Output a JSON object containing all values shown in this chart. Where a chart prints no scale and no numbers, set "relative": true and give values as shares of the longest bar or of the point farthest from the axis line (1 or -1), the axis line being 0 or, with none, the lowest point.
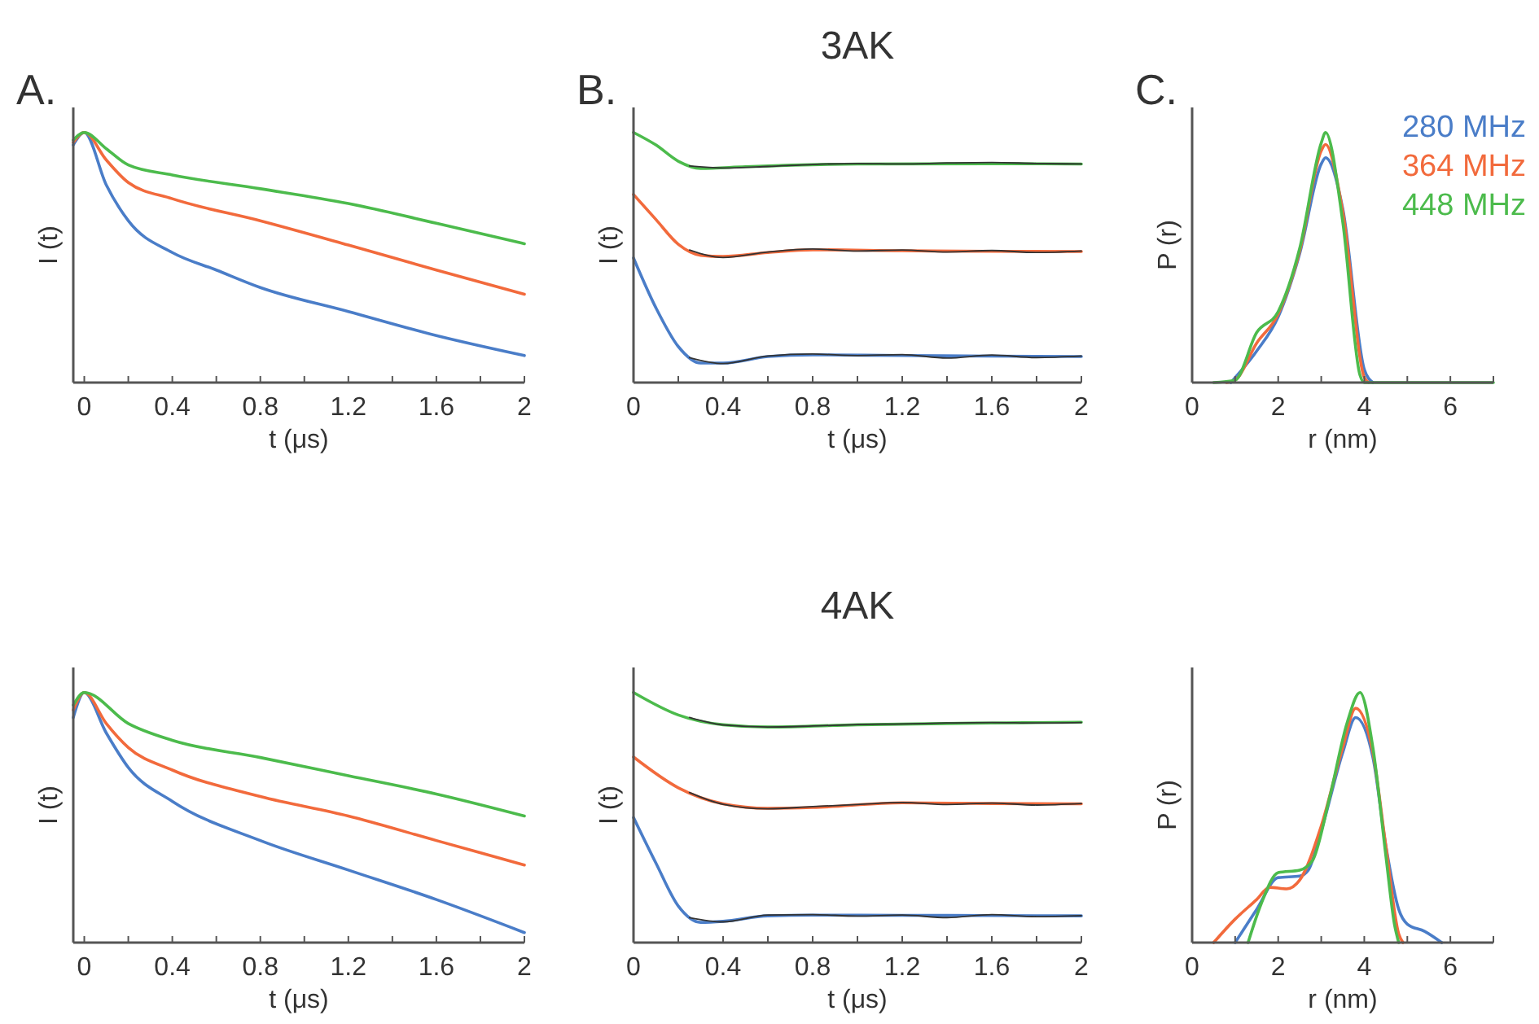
{
  "chart_data": [
    {
      "type": "line",
      "relative": true,
      "xlabel": "t (μs)",
      "ylabel": "I (t)",
      "annotations": [
        "A."
      ],
      "xlim": [
        -0.05,
        2
      ],
      "xticks": [
        0,
        {
          "value": 0.2,
          "label": null
        },
        0.4,
        {
          "value": 0.6,
          "label": null
        },
        0.8,
        {
          "value": 1.0,
          "label": null
        },
        1.2,
        {
          "value": 1.4,
          "label": null
        },
        1.6,
        {
          "value": 1.8,
          "label": null
        },
        2
      ],
      "tick_labels": "x",
      "legend": false,
      "series": [
        {
          "color": "#4a7dc8",
          "x": [
            -0.05,
            0,
            0.1,
            0.2,
            0.4,
            0.6,
            0.8,
            1.2,
            1.6,
            2
          ],
          "values": [
            0.95,
            1.0,
            0.79,
            0.647,
            0.52,
            0.45,
            0.38,
            0.284,
            0.188,
            0.108
          ]
        },
        {
          "color": "#f26a3c",
          "x": [
            -0.05,
            0,
            0.1,
            0.2,
            0.4,
            0.8,
            1.2,
            1.6,
            2
          ],
          "values": [
            0.96,
            1.0,
            0.89,
            0.8,
            0.735,
            0.647,
            0.55,
            0.45,
            0.353
          ]
        },
        {
          "color": "#4cbb4c",
          "x": [
            -0.05,
            0,
            0.1,
            0.2,
            0.4,
            0.8,
            1.2,
            1.6,
            2
          ],
          "values": [
            0.97,
            1.0,
            0.935,
            0.87,
            0.83,
            0.775,
            0.716,
            0.637,
            0.555
          ]
        }
      ]
    },
    {
      "type": "line",
      "relative": true,
      "title": "3AK",
      "xlabel": "t (μs)",
      "ylabel": "I (t)",
      "annotations": [
        "B."
      ],
      "xlim": [
        0,
        2
      ],
      "xticks": [
        0,
        {
          "value": 0.2,
          "label": null
        },
        0.4,
        {
          "value": 0.6,
          "label": null
        },
        0.8,
        {
          "value": 1.0,
          "label": null
        },
        1.2,
        {
          "value": 1.4,
          "label": null
        },
        1.6,
        {
          "value": 1.8,
          "label": null
        },
        2
      ],
      "tick_labels": "x",
      "legend": false,
      "series": [
        {
          "color": "#4a7dc8",
          "x": [
            0,
            0.1,
            0.2,
            0.3,
            0.4,
            0.6,
            0.8,
            1.2,
            1.6,
            2
          ],
          "values": [
            0.498,
            0.299,
            0.144,
            0.078,
            0.078,
            0.104,
            0.111,
            0.108,
            0.106,
            0.104
          ]
        },
        {
          "color": "#f26a3c",
          "x": [
            0,
            0.1,
            0.2,
            0.3,
            0.4,
            0.6,
            0.8,
            1.2,
            1.6,
            2
          ],
          "values": [
            0.752,
            0.652,
            0.553,
            0.509,
            0.504,
            0.52,
            0.531,
            0.527,
            0.525,
            0.524
          ]
        },
        {
          "color": "#4cbb4c",
          "x": [
            0,
            0.1,
            0.2,
            0.3,
            0.5,
            1.0,
            1.6,
            2
          ],
          "values": [
            1.0,
            0.95,
            0.885,
            0.856,
            0.863,
            0.874,
            0.875,
            0.874
          ]
        },
        {
          "color": "#333333",
          "x": [
            0.25,
            0.4,
            0.6,
            0.8,
            1.0,
            1.2,
            1.4,
            1.6,
            1.8,
            2
          ],
          "values": [
            0.1,
            0.076,
            0.106,
            0.114,
            0.108,
            0.112,
            0.098,
            0.11,
            0.1,
            0.106
          ]
        },
        {
          "color": "#333333",
          "x": [
            0.25,
            0.4,
            0.6,
            0.8,
            1.0,
            1.2,
            1.4,
            1.6,
            1.8,
            2
          ],
          "values": [
            0.53,
            0.5,
            0.522,
            0.534,
            0.526,
            0.53,
            0.522,
            0.528,
            0.52,
            0.526
          ]
        },
        {
          "color": "#333333",
          "x": [
            0.25,
            0.4,
            0.6,
            0.8,
            1.0,
            1.2,
            1.4,
            1.6,
            1.8,
            2
          ],
          "values": [
            0.866,
            0.858,
            0.864,
            0.872,
            0.876,
            0.874,
            0.878,
            0.88,
            0.876,
            0.874
          ]
        }
      ]
    },
    {
      "type": "line",
      "relative": true,
      "xlabel": "r (nm)",
      "ylabel": "P (r)",
      "annotations": [
        "C."
      ],
      "xlim": [
        0,
        7
      ],
      "xticks": [
        0,
        {
          "value": 1,
          "label": null
        },
        2,
        {
          "value": 3,
          "label": null
        },
        4,
        {
          "value": 5,
          "label": null
        },
        6,
        {
          "value": 7,
          "label": null
        }
      ],
      "tick_labels": "x",
      "legend": "top right",
      "series": [
        {
          "name": "280 MHz",
          "color": "#4a7dc8",
          "x": [
            0.9,
            1.5,
            2,
            2.5,
            3,
            3.1,
            3.5,
            4,
            4.2
          ],
          "values": [
            0,
            0.126,
            0.263,
            0.516,
            0.874,
            0.899,
            0.695,
            0.053,
            0
          ]
        },
        {
          "name": "364 MHz",
          "color": "#f26a3c",
          "x": [
            0.8,
            1.0,
            1.5,
            2,
            2.5,
            3,
            3.1,
            3.5,
            4,
            4.1
          ],
          "values": [
            0,
            0.01,
            0.158,
            0.274,
            0.526,
            0.927,
            0.952,
            0.684,
            0.021,
            0
          ]
        },
        {
          "name": "448 MHz",
          "color": "#4cbb4c",
          "x": [
            0.5,
            1.0,
            1.5,
            2,
            2.5,
            3,
            3.1,
            3.5,
            3.9,
            4,
            7
          ],
          "values": [
            0,
            0.01,
            0.2,
            0.284,
            0.537,
            0.958,
            1.0,
            0.642,
            0.03,
            0,
            0
          ]
        }
      ]
    },
    {
      "type": "line",
      "relative": true,
      "xlabel": "t (μs)",
      "ylabel": "I (t)",
      "xlim": [
        -0.05,
        2
      ],
      "xticks": [
        0,
        {
          "value": 0.2,
          "label": null
        },
        0.4,
        {
          "value": 0.6,
          "label": null
        },
        0.8,
        {
          "value": 1.0,
          "label": null
        },
        1.2,
        {
          "value": 1.4,
          "label": null
        },
        1.6,
        {
          "value": 1.8,
          "label": null
        },
        2
      ],
      "tick_labels": "x",
      "legend": false,
      "series": [
        {
          "color": "#4a7dc8",
          "x": [
            -0.05,
            0,
            0.1,
            0.2,
            0.4,
            0.8,
            1.2,
            1.6,
            2
          ],
          "values": [
            0.9,
            1.0,
            0.838,
            0.7,
            0.565,
            0.408,
            0.29,
            0.172,
            0.04
          ]
        },
        {
          "color": "#f26a3c",
          "x": [
            -0.05,
            0,
            0.1,
            0.2,
            0.4,
            0.8,
            1.2,
            1.6,
            2
          ],
          "values": [
            0.93,
            1.0,
            0.876,
            0.78,
            0.69,
            0.584,
            0.506,
            0.408,
            0.31
          ]
        },
        {
          "color": "#4cbb4c",
          "x": [
            -0.05,
            0,
            0.2,
            0.4,
            0.8,
            1.2,
            1.6,
            2
          ],
          "values": [
            0.95,
            1.0,
            0.876,
            0.809,
            0.74,
            0.667,
            0.594,
            0.506
          ]
        }
      ]
    },
    {
      "type": "line",
      "relative": true,
      "title": "4AK",
      "xlabel": "t (μs)",
      "ylabel": "I (t)",
      "xlim": [
        0,
        2
      ],
      "xticks": [
        0,
        {
          "value": 0.2,
          "label": null
        },
        0.4,
        {
          "value": 0.6,
          "label": null
        },
        0.8,
        {
          "value": 1.0,
          "label": null
        },
        1.2,
        {
          "value": 1.4,
          "label": null
        },
        1.6,
        {
          "value": 1.8,
          "label": null
        },
        2
      ],
      "tick_labels": "x",
      "legend": false,
      "series": [
        {
          "color": "#4a7dc8",
          "x": [
            0,
            0.1,
            0.2,
            0.3,
            0.4,
            0.6,
            0.8,
            1.2,
            1.6,
            2
          ],
          "values": [
            0.5,
            0.318,
            0.146,
            0.081,
            0.085,
            0.107,
            0.11,
            0.109,
            0.108,
            0.107
          ]
        },
        {
          "color": "#f26a3c",
          "x": [
            0,
            0.2,
            0.4,
            0.6,
            0.8,
            1.2,
            1.6,
            2
          ],
          "values": [
            0.742,
            0.619,
            0.555,
            0.537,
            0.54,
            0.559,
            0.556,
            0.555
          ]
        },
        {
          "color": "#4cbb4c",
          "x": [
            0,
            0.2,
            0.4,
            0.6,
            1.0,
            1.6,
            2
          ],
          "values": [
            1.0,
            0.91,
            0.871,
            0.862,
            0.871,
            0.878,
            0.881
          ]
        },
        {
          "color": "#333333",
          "x": [
            0.25,
            0.4,
            0.6,
            0.8,
            1.0,
            1.2,
            1.4,
            1.6,
            1.8,
            2
          ],
          "values": [
            0.1,
            0.083,
            0.11,
            0.112,
            0.106,
            0.11,
            0.1,
            0.112,
            0.104,
            0.108
          ]
        },
        {
          "color": "#333333",
          "x": [
            0.25,
            0.4,
            0.6,
            0.8,
            1.0,
            1.2,
            1.4,
            1.6,
            1.8,
            2
          ],
          "values": [
            0.6,
            0.553,
            0.535,
            0.544,
            0.552,
            0.56,
            0.552,
            0.558,
            0.55,
            0.556
          ]
        },
        {
          "color": "#333333",
          "x": [
            0.25,
            0.4,
            0.6,
            0.8,
            1.0,
            1.2,
            1.4,
            1.6,
            1.8,
            2
          ],
          "values": [
            0.9,
            0.87,
            0.862,
            0.866,
            0.872,
            0.874,
            0.878,
            0.88,
            0.878,
            0.88
          ]
        }
      ]
    },
    {
      "type": "line",
      "relative": true,
      "xlabel": "r (nm)",
      "ylabel": "P (r)",
      "xlim": [
        0,
        7
      ],
      "xticks": [
        0,
        {
          "value": 1,
          "label": null
        },
        2,
        {
          "value": 3,
          "label": null
        },
        4,
        {
          "value": 5,
          "label": null
        },
        6,
        {
          "value": 7,
          "label": null
        }
      ],
      "tick_labels": "x",
      "legend": false,
      "series": [
        {
          "color": "#4a7dc8",
          "x": [
            1.0,
            1.5,
            2,
            2.5,
            2.7,
            3,
            3.5,
            3.8,
            4.2,
            4.5,
            4.8,
            5,
            5.4,
            5.8
          ],
          "values": [
            0,
            0.133,
            0.26,
            0.266,
            0.29,
            0.447,
            0.76,
            0.9,
            0.741,
            0.388,
            0.133,
            0.074,
            0.045,
            0
          ]
        },
        {
          "color": "#f26a3c",
          "x": [
            0.5,
            1,
            1.5,
            1.8,
            2.2,
            2.5,
            3,
            3.5,
            3.8,
            4.2,
            4.5,
            4.8,
            4.9
          ],
          "values": [
            0,
            0.094,
            0.172,
            0.221,
            0.215,
            0.25,
            0.466,
            0.78,
            0.937,
            0.76,
            0.388,
            0.035,
            0
          ]
        },
        {
          "color": "#4cbb4c",
          "x": [
            1.3,
            1.6,
            2,
            2.5,
            2.8,
            3.2,
            3.6,
            3.9,
            4.2,
            4.5,
            4.7,
            4.8
          ],
          "values": [
            0,
            0.153,
            0.28,
            0.29,
            0.329,
            0.584,
            0.878,
            1.0,
            0.78,
            0.349,
            0.074,
            0
          ]
        }
      ]
    }
  ]
}
